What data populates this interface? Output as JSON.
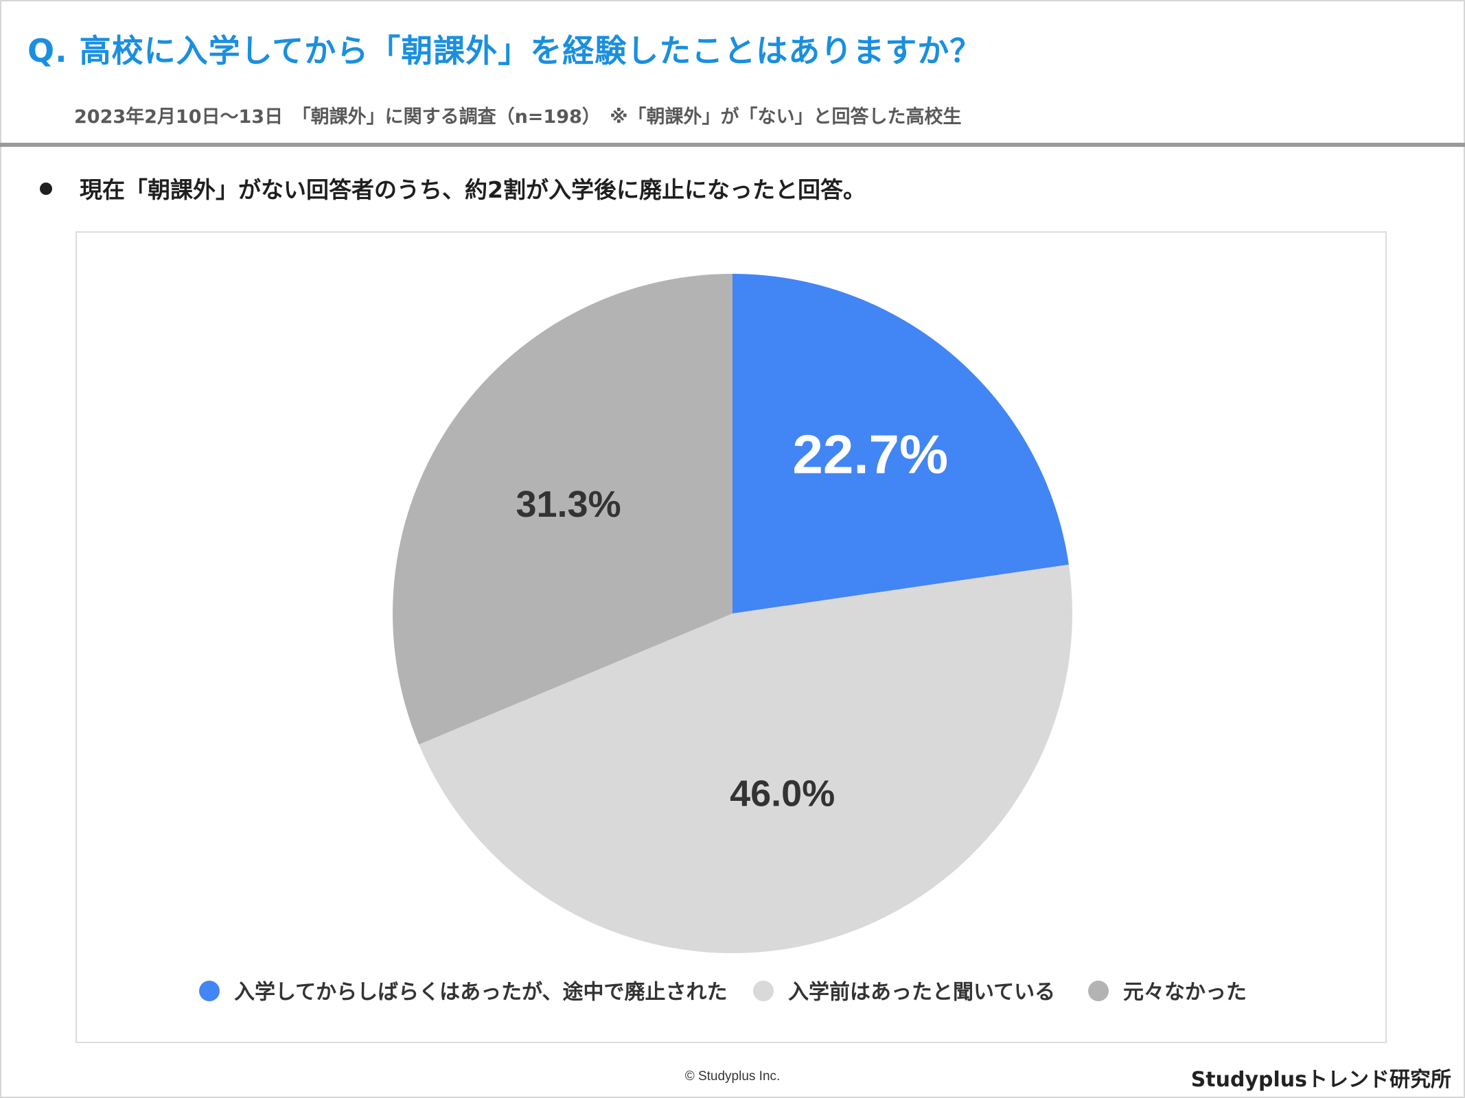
{
  "header": {
    "title": "Q. 高校に入学してから「朝課外」を経験したことはありますか？",
    "subtitle": "2023年2月10日～13日　「朝課外」に関する調査（n=198）　※「朝課外」が「ない」と回答した高校生"
  },
  "summary": {
    "bullet": "現在「朝課外」がない回答者のうち、約2割が入学後に廃止になったと回答。"
  },
  "chart_data": {
    "type": "pie",
    "title": "",
    "start_angle_deg": 0,
    "direction": "clockwise",
    "categories": [
      "入学してからしばらくはあったが、途中で廃止された",
      "入学前はあったと聞いている",
      "元々なかった"
    ],
    "values": [
      22.7,
      46.0,
      31.3
    ],
    "labels": [
      "22.7%",
      "46.0%",
      "31.3%"
    ],
    "colors": [
      "#4285f4",
      "#d9d9d9",
      "#b3b3b3"
    ],
    "label_colors": [
      "#ffffff",
      "#333333",
      "#333333"
    ],
    "legend_position": "bottom"
  },
  "footer": {
    "copyright": "© Studyplus Inc.",
    "brand": "Studyplusトレンド研究所"
  }
}
